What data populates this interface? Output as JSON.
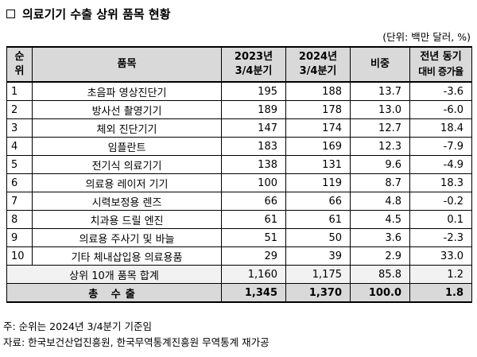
{
  "title": "의료기기 수출 상위 품목 현황",
  "unit": "(단위: 백만 달러, %)",
  "headers": {
    "rank_line1": "순",
    "rank_line2": "위",
    "item": "품목",
    "y2023_line1": "2023년",
    "y2023_line2": "3/4분기",
    "y2024_line1": "2024년",
    "y2024_line2": "3/4분기",
    "share": "비중",
    "growth_line1": "전년 동기",
    "growth_line2": "대비 증가율"
  },
  "rows": [
    {
      "rank": "1",
      "item": "초음파 영상진단기",
      "y2023": "195",
      "y2024": "188",
      "share": "13.7",
      "growth": "-3.6"
    },
    {
      "rank": "2",
      "item": "방사선 촬영기기",
      "y2023": "189",
      "y2024": "178",
      "share": "13.0",
      "growth": "-6.0"
    },
    {
      "rank": "3",
      "item": "체외 진단기기",
      "y2023": "147",
      "y2024": "174",
      "share": "12.7",
      "growth": "18.4"
    },
    {
      "rank": "4",
      "item": "임플란트",
      "y2023": "183",
      "y2024": "169",
      "share": "12.3",
      "growth": "-7.9"
    },
    {
      "rank": "5",
      "item": "전기식 의료기기",
      "y2023": "138",
      "y2024": "131",
      "share": "9.6",
      "growth": "-4.9"
    },
    {
      "rank": "6",
      "item": "의료용 레이저 기기",
      "y2023": "100",
      "y2024": "119",
      "share": "8.7",
      "growth": "18.3"
    },
    {
      "rank": "7",
      "item": "시력보정용 렌즈",
      "y2023": "66",
      "y2024": "66",
      "share": "4.8",
      "growth": "-0.2"
    },
    {
      "rank": "8",
      "item": "치과용 드릴 엔진",
      "y2023": "61",
      "y2024": "61",
      "share": "4.5",
      "growth": "0.1"
    },
    {
      "rank": "9",
      "item": "의료용 주사기 및 바늘",
      "y2023": "51",
      "y2024": "50",
      "share": "3.6",
      "growth": "-2.3"
    },
    {
      "rank": "10",
      "item": "기타 체내삽입용 의료용품",
      "y2023": "29",
      "y2024": "39",
      "share": "2.9",
      "growth": "33.0"
    }
  ],
  "subtotal": {
    "label": "상위 10개 품목 합계",
    "y2023": "1,160",
    "y2024": "1,175",
    "share": "85.8",
    "growth": "1.2"
  },
  "total": {
    "label": "총 수출",
    "y2023": "1,345",
    "y2024": "1,370",
    "share": "100.0",
    "growth": "1.8"
  },
  "notes": [
    "주: 순위는 2024년 3/4분기 기준임",
    "자료: 한국보건산업진흥원, 한국무역통계진흥원 무역통계 재가공"
  ]
}
